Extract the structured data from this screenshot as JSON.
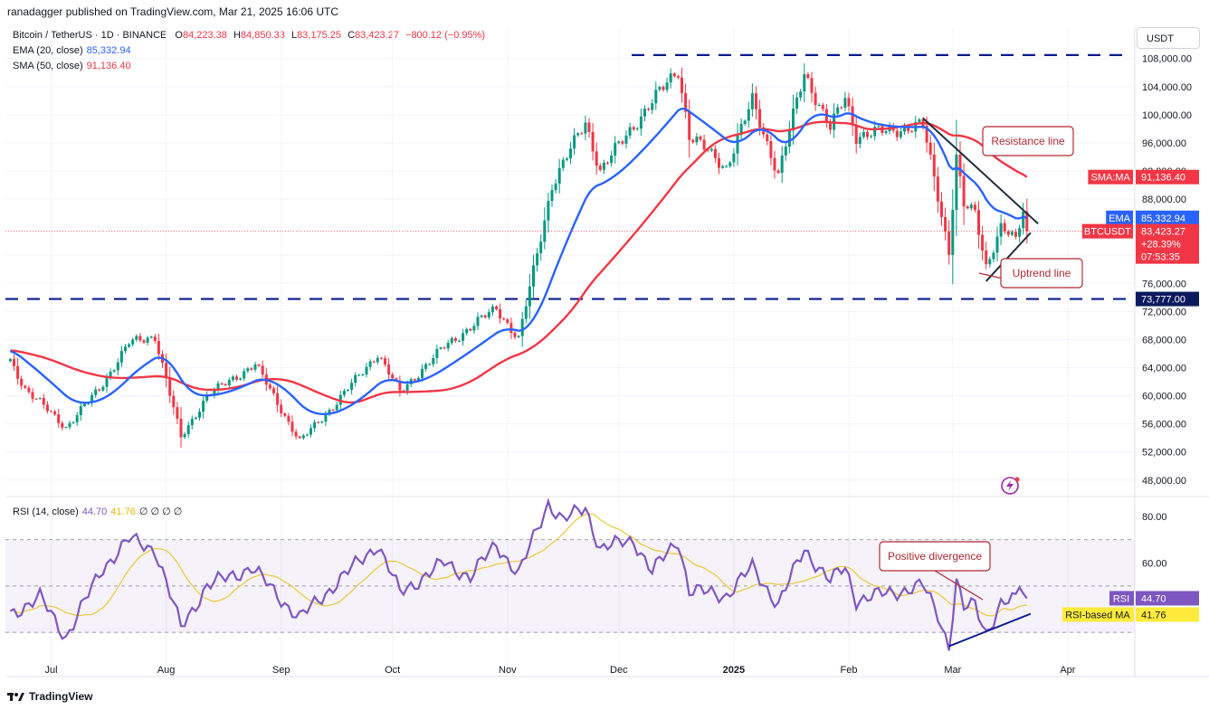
{
  "header": {
    "publisher": "ranadagger published on TradingView.com, Mar 21, 2025 16:06 UTC",
    "symbol": "Bitcoin / TetherUS · 1D · BINANCE",
    "ohlc": {
      "o_label": "O",
      "o": "84,223.38",
      "h_label": "H",
      "h": "84,850.33",
      "l_label": "L",
      "l": "83,175.25",
      "c_label": "C",
      "c": "83,423.27",
      "change": "−800.12 (−0.95%)"
    },
    "ema_label": "EMA (20, close)",
    "ema_value": "85,332.94",
    "sma_label": "SMA (50, close)",
    "sma_value": "91,136.40",
    "rsi_label": "RSI (14, close)",
    "rsi_value": "44.70",
    "rsi_ma_value": "41.76",
    "rsi_extra": "∅ ∅ ∅ ∅",
    "currency": "USDT"
  },
  "footer": {
    "brand": "TradingView"
  },
  "colors": {
    "up": "#089981",
    "down": "#f23645",
    "ema": "#2962ff",
    "sma": "#f23645",
    "rsi": "#7e57c2",
    "rsi_ma": "#e8c93a",
    "level": "#0a1a8c",
    "trend": "#1e2a3a"
  },
  "chart_data": [
    {
      "type": "candlestick",
      "title": "Bitcoin / TetherUS · 1D · BINANCE",
      "ylim": [
        45000,
        111000
      ],
      "y_ticks": [
        "108,000.00",
        "104,000.00",
        "100,000.00",
        "96,000.00",
        "92,000.00",
        "88,000.00",
        "84,000.00",
        "80,000.00",
        "76,000.00",
        "72,000.00",
        "68,000.00",
        "64,000.00",
        "60,000.00",
        "56,000.00",
        "52,000.00",
        "48,000.00"
      ],
      "x_ticks": [
        "Jul",
        "Aug",
        "Sep",
        "Oct",
        "Nov",
        "Dec",
        "2025",
        "Feb",
        "Mar",
        "Apr"
      ],
      "price_anchors": [
        [
          "2024-06-20",
          65000
        ],
        [
          "2024-06-24",
          61000
        ],
        [
          "2024-07-05",
          55500
        ],
        [
          "2024-07-14",
          61000
        ],
        [
          "2024-07-22",
          67500
        ],
        [
          "2024-07-29",
          68500
        ],
        [
          "2024-08-05",
          54000
        ],
        [
          "2024-08-12",
          60000
        ],
        [
          "2024-08-25",
          64500
        ],
        [
          "2024-09-06",
          53500
        ],
        [
          "2024-09-15",
          58500
        ],
        [
          "2024-09-27",
          66000
        ],
        [
          "2024-10-03",
          60500
        ],
        [
          "2024-10-15",
          67000
        ],
        [
          "2024-10-29",
          72500
        ],
        [
          "2024-11-04",
          68000
        ],
        [
          "2024-11-13",
          90000
        ],
        [
          "2024-11-22",
          99000
        ],
        [
          "2024-11-26",
          92000
        ],
        [
          "2024-12-05",
          98500
        ],
        [
          "2024-12-17",
          106500
        ],
        [
          "2024-12-20",
          97000
        ],
        [
          "2024-12-30",
          92500
        ],
        [
          "2025-01-06",
          102000
        ],
        [
          "2025-01-13",
          91500
        ],
        [
          "2025-01-20",
          106000
        ],
        [
          "2025-01-27",
          98000
        ],
        [
          "2025-01-31",
          102500
        ],
        [
          "2025-02-03",
          97000
        ],
        [
          "2025-02-21",
          98500
        ],
        [
          "2025-02-25",
          88500
        ],
        [
          "2025-02-28",
          80500
        ],
        [
          "2025-03-02",
          94000
        ],
        [
          "2025-03-04",
          87000
        ],
        [
          "2025-03-07",
          86000
        ],
        [
          "2025-03-10",
          78500
        ],
        [
          "2025-03-14",
          84000
        ],
        [
          "2025-03-18",
          82000
        ],
        [
          "2025-03-20",
          86500
        ],
        [
          "2025-03-21",
          83423
        ]
      ],
      "series": [
        {
          "name": "EMA (20, close)",
          "last": 85332.94
        },
        {
          "name": "SMA (50, close)",
          "last": 91136.4
        }
      ],
      "horizontal_levels": [
        108500,
        73777
      ],
      "price_labels": [
        {
          "label": "SMA:MA",
          "value": "91,136.40"
        },
        {
          "label": "EMA",
          "value": "85,332.94"
        },
        {
          "label": "BTCUSDT",
          "value": "83,423.27",
          "extra1": "+28.39%",
          "extra2": "07:53:35"
        },
        {
          "label": "",
          "value": "73,777.00"
        }
      ],
      "annotations": [
        "Resistance line",
        "Uptrend line"
      ]
    },
    {
      "type": "line",
      "title": "RSI (14, close)",
      "ylim": [
        30,
        90
      ],
      "y_ticks": [
        "80.00",
        "60.00"
      ],
      "bands": [
        70,
        50,
        30
      ],
      "rsi_anchors": [
        [
          "2024-06-20",
          38
        ],
        [
          "2024-06-28",
          45
        ],
        [
          "2024-07-05",
          28
        ],
        [
          "2024-07-15",
          58
        ],
        [
          "2024-07-22",
          70
        ],
        [
          "2024-07-29",
          66
        ],
        [
          "2024-08-05",
          32
        ],
        [
          "2024-08-12",
          50
        ],
        [
          "2024-08-24",
          58
        ],
        [
          "2024-09-06",
          36
        ],
        [
          "2024-09-15",
          50
        ],
        [
          "2024-09-27",
          68
        ],
        [
          "2024-10-03",
          47
        ],
        [
          "2024-10-15",
          60
        ],
        [
          "2024-10-22",
          54
        ],
        [
          "2024-10-29",
          68
        ],
        [
          "2024-11-04",
          55
        ],
        [
          "2024-11-12",
          86
        ],
        [
          "2024-11-16",
          78
        ],
        [
          "2024-11-22",
          84
        ],
        [
          "2024-11-26",
          66
        ],
        [
          "2024-12-05",
          70
        ],
        [
          "2024-12-10",
          56
        ],
        [
          "2024-12-17",
          70
        ],
        [
          "2024-12-20",
          48
        ],
        [
          "2024-12-30",
          46
        ],
        [
          "2025-01-06",
          58
        ],
        [
          "2025-01-13",
          42
        ],
        [
          "2025-01-20",
          66
        ],
        [
          "2025-01-27",
          52
        ],
        [
          "2025-01-31",
          58
        ],
        [
          "2025-02-03",
          44
        ],
        [
          "2025-02-21",
          50
        ],
        [
          "2025-02-25",
          38
        ],
        [
          "2025-02-28",
          24
        ],
        [
          "2025-03-02",
          52
        ],
        [
          "2025-03-04",
          40
        ],
        [
          "2025-03-07",
          42
        ],
        [
          "2025-03-10",
          30
        ],
        [
          "2025-03-14",
          42
        ],
        [
          "2025-03-18",
          44
        ],
        [
          "2025-03-19",
          51
        ],
        [
          "2025-03-21",
          44.7
        ]
      ],
      "series": [
        {
          "name": "RSI",
          "last": 44.7
        },
        {
          "name": "RSI-based MA",
          "last": 41.76
        }
      ],
      "price_labels": [
        {
          "label": "RSI",
          "value": "44.70"
        },
        {
          "label": "RSI-based MA",
          "value": "41.76"
        }
      ],
      "annotations": [
        "Positive divergence"
      ]
    }
  ]
}
